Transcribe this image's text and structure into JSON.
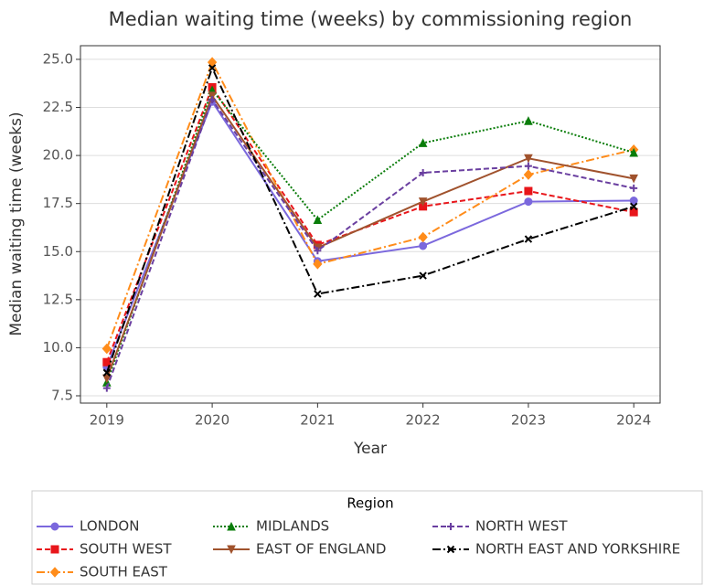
{
  "chart_data": {
    "type": "line",
    "title": "Median waiting time (weeks) by commissioning region",
    "x_label": "Year",
    "y_label": "Median waiting time (weeks)",
    "legend_title": "Region",
    "legend": "bottom",
    "grid": true,
    "x": [
      2019,
      2020,
      2021,
      2022,
      2023,
      2024
    ],
    "xlim": [
      2018.75,
      2024.25
    ],
    "xticks": [
      2019,
      2020,
      2021,
      2022,
      2023,
      2024
    ],
    "ylim": [
      7.12,
      25.71
    ],
    "yticks": [
      {
        "value": 7.5,
        "label": "7.5"
      },
      {
        "value": 10,
        "label": "10.0"
      },
      12.5,
      {
        "value": 15,
        "label": "15.0"
      },
      17.5,
      {
        "value": 20,
        "label": "20.0"
      },
      22.5,
      {
        "value": 25,
        "label": "25.0"
      }
    ],
    "series": [
      {
        "name": "LONDON",
        "color": "#7b68dd",
        "dash": "solid",
        "marker": "circle",
        "values": [
          9.0,
          22.8,
          14.5,
          15.3,
          17.6,
          17.65
        ]
      },
      {
        "name": "SOUTH WEST",
        "color": "#e8161b",
        "dash": "dashed",
        "marker": "square",
        "values": [
          9.25,
          23.55,
          15.35,
          17.35,
          18.15,
          17.05
        ]
      },
      {
        "name": "SOUTH EAST",
        "color": "#ff8c1a",
        "dash": "dashdot",
        "marker": "diamond",
        "values": [
          9.95,
          24.85,
          14.35,
          15.75,
          19.0,
          20.3
        ]
      },
      {
        "name": "MIDLANDS",
        "color": "#0a7d0a",
        "dash": "dotted",
        "marker": "triangle-up",
        "values": [
          8.2,
          23.4,
          16.65,
          20.65,
          21.8,
          20.15
        ]
      },
      {
        "name": "EAST OF ENGLAND",
        "color": "#a0522d",
        "dash": "solid",
        "marker": "triangle-down",
        "values": [
          8.4,
          23.1,
          15.2,
          17.6,
          19.85,
          18.8
        ]
      },
      {
        "name": "NORTH WEST",
        "color": "#6a3fa0",
        "dash": "dashed",
        "marker": "plus",
        "values": [
          7.9,
          22.9,
          15.05,
          19.1,
          19.45,
          18.3
        ]
      },
      {
        "name": "NORTH EAST AND YORKSHIRE",
        "color": "#000000",
        "dash": "dashdot",
        "marker": "x",
        "values": [
          8.7,
          24.55,
          12.8,
          13.75,
          15.65,
          17.35
        ]
      }
    ]
  }
}
